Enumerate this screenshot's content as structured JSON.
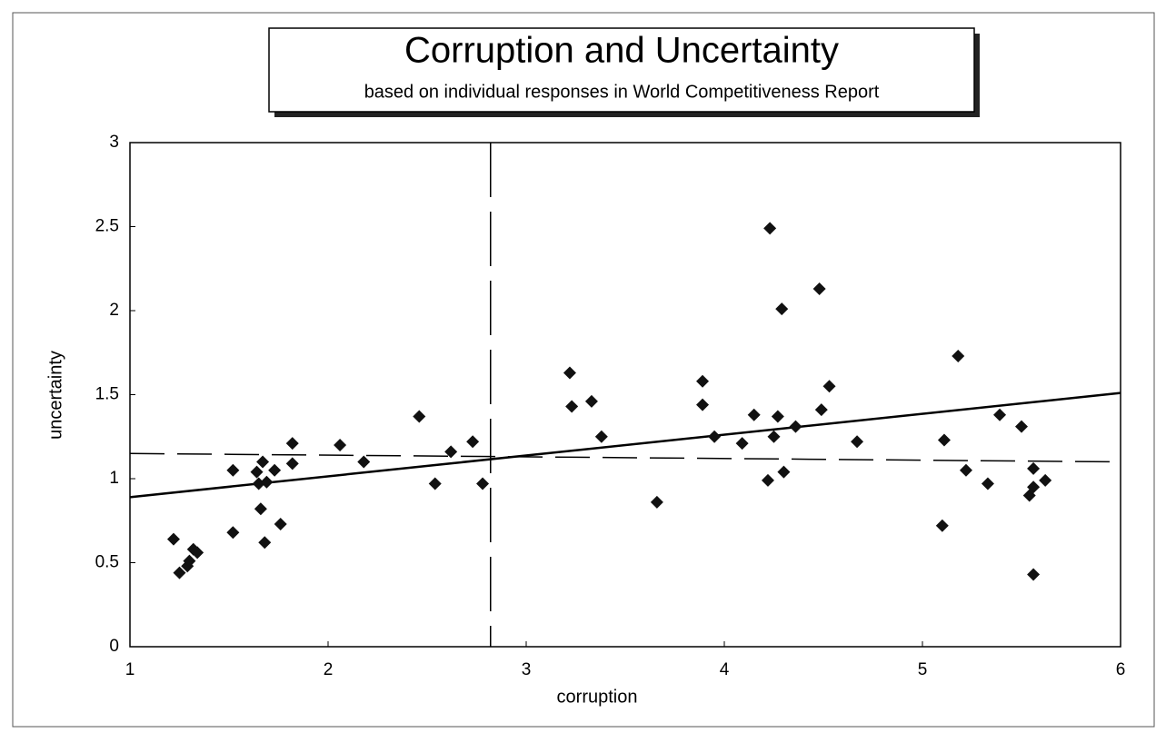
{
  "chart_data": {
    "type": "scatter",
    "title": "Corruption and Uncertainty",
    "subtitle": "based on individual responses in World Competitiveness Report",
    "x_label": "corruption",
    "y_label": "uncertainty",
    "xlim": [
      1,
      6
    ],
    "ylim": [
      0,
      3
    ],
    "xticks": [
      1,
      2,
      3,
      4,
      5,
      6
    ],
    "yticks": [
      0,
      0.5,
      1,
      1.5,
      2,
      2.5,
      3
    ],
    "x": [
      1.22,
      1.25,
      1.29,
      1.3,
      1.32,
      1.34,
      1.52,
      1.52,
      1.64,
      1.65,
      1.67,
      1.66,
      1.68,
      1.69,
      1.73,
      1.76,
      1.82,
      1.82,
      2.06,
      2.18,
      2.46,
      2.54,
      2.62,
      2.73,
      2.78,
      3.22,
      3.23,
      3.33,
      3.38,
      3.66,
      3.89,
      3.89,
      3.95,
      4.09,
      4.15,
      4.22,
      4.23,
      4.25,
      4.27,
      4.29,
      4.3,
      4.36,
      4.48,
      4.49,
      4.53,
      4.67,
      5.1,
      5.11,
      5.18,
      5.22,
      5.33,
      5.39,
      5.5,
      5.56,
      5.54,
      5.56,
      5.56,
      5.62
    ],
    "series": [
      {
        "color": "#111111",
        "values": [
          0.64,
          0.44,
          0.48,
          0.51,
          0.58,
          0.56,
          1.05,
          0.68,
          1.04,
          0.97,
          1.1,
          0.82,
          0.62,
          0.98,
          1.05,
          0.73,
          1.21,
          1.09,
          1.2,
          1.1,
          1.37,
          0.97,
          1.16,
          1.22,
          0.97,
          1.63,
          1.43,
          1.46,
          1.25,
          0.86,
          1.58,
          1.44,
          1.25,
          1.21,
          1.38,
          0.99,
          2.49,
          1.25,
          1.37,
          2.01,
          1.04,
          1.31,
          2.13,
          1.41,
          1.55,
          1.22,
          0.72,
          1.23,
          1.73,
          1.05,
          0.97,
          1.38,
          1.31,
          1.06,
          0.9,
          0.95,
          0.43,
          0.99
        ]
      }
    ],
    "trend_line": {
      "x": [
        1,
        6
      ],
      "y": [
        0.89,
        1.51
      ]
    },
    "mean_line": {
      "x": [
        1,
        6
      ],
      "y": [
        1.15,
        1.1
      ]
    },
    "vline_x": 2.82
  }
}
